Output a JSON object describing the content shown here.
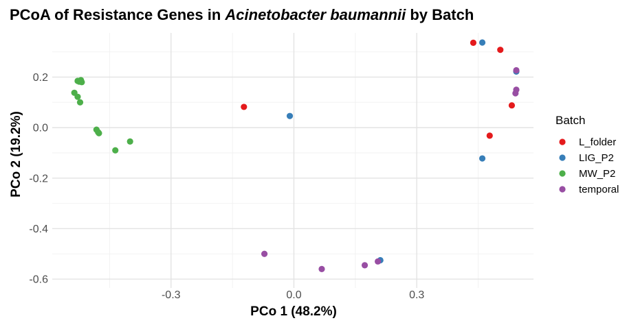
{
  "chart_data": {
    "type": "scatter",
    "title_parts": [
      {
        "text": "PCoA of Resistance Genes in ",
        "italic": false
      },
      {
        "text": "Acinetobacter baumannii",
        "italic": true
      },
      {
        "text": " by Batch",
        "italic": false
      }
    ],
    "xlabel": "PCo 1 (48.2%)",
    "ylabel": "PCo 2 (19.2%)",
    "xlim": [
      -0.59,
      0.585
    ],
    "ylim": [
      -0.635,
      0.375
    ],
    "x_ticks": [
      {
        "value": -0.3,
        "label": "-0.3"
      },
      {
        "value": 0.0,
        "label": "0.0"
      },
      {
        "value": 0.3,
        "label": "0.3"
      }
    ],
    "y_ticks": [
      {
        "value": 0.2,
        "label": "0.2"
      },
      {
        "value": 0.0,
        "label": "0.0"
      },
      {
        "value": -0.2,
        "label": "-0.2"
      },
      {
        "value": -0.4,
        "label": "-0.4"
      },
      {
        "value": -0.6,
        "label": "-0.6"
      }
    ],
    "grid": true,
    "legend": {
      "title": "Batch",
      "placement": "right"
    },
    "series": [
      {
        "name": "L_folder",
        "color": "#E41A1C",
        "points": [
          {
            "x": -0.122,
            "y": 0.082
          },
          {
            "x": 0.438,
            "y": 0.336
          },
          {
            "x": 0.504,
            "y": 0.308
          },
          {
            "x": 0.532,
            "y": 0.088
          },
          {
            "x": 0.478,
            "y": -0.032
          }
        ]
      },
      {
        "name": "LIG_P2",
        "color": "#377EB8",
        "points": [
          {
            "x": -0.01,
            "y": 0.046
          },
          {
            "x": 0.46,
            "y": 0.337
          },
          {
            "x": 0.46,
            "y": -0.122
          },
          {
            "x": 0.543,
            "y": 0.222
          },
          {
            "x": 0.211,
            "y": -0.525
          }
        ]
      },
      {
        "name": "MW_P2",
        "color": "#4DAF4A",
        "points": [
          {
            "x": -0.528,
            "y": 0.185
          },
          {
            "x": -0.52,
            "y": 0.188
          },
          {
            "x": -0.518,
            "y": 0.18
          },
          {
            "x": -0.524,
            "y": 0.182
          },
          {
            "x": -0.536,
            "y": 0.138
          },
          {
            "x": -0.528,
            "y": 0.122
          },
          {
            "x": -0.522,
            "y": 0.1
          },
          {
            "x": -0.482,
            "y": -0.008
          },
          {
            "x": -0.478,
            "y": -0.018
          },
          {
            "x": -0.476,
            "y": -0.022
          },
          {
            "x": -0.436,
            "y": -0.09
          },
          {
            "x": -0.4,
            "y": -0.055
          }
        ]
      },
      {
        "name": "temporal",
        "color": "#984EA3",
        "points": [
          {
            "x": 0.543,
            "y": 0.227
          },
          {
            "x": 0.543,
            "y": 0.15
          },
          {
            "x": 0.541,
            "y": 0.136
          },
          {
            "x": -0.072,
            "y": -0.5
          },
          {
            "x": 0.068,
            "y": -0.56
          },
          {
            "x": 0.173,
            "y": -0.545
          },
          {
            "x": 0.205,
            "y": -0.53
          }
        ]
      }
    ]
  }
}
